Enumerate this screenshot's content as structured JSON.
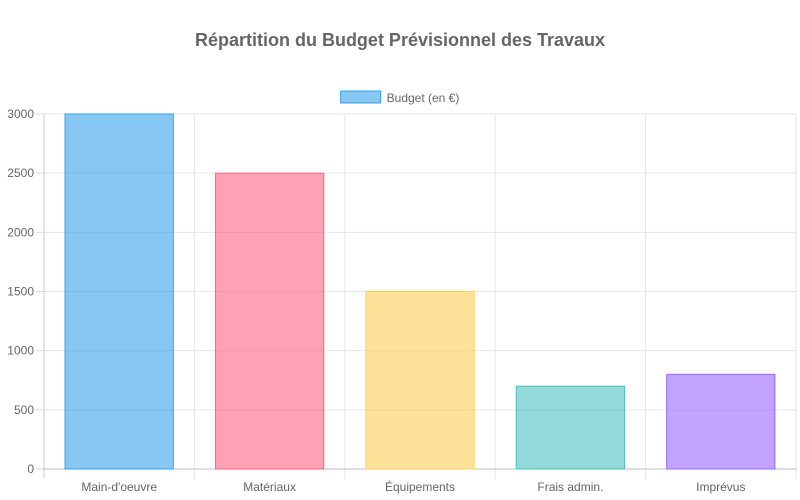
{
  "chart_data": {
    "type": "bar",
    "title": "Répartition du Budget Prévisionnel des Travaux",
    "categories": [
      "Main-d'oeuvre",
      "Matériaux",
      "Équipements",
      "Frais admin.",
      "Imprévus"
    ],
    "series": [
      {
        "name": "Budget (en €)",
        "values": [
          3000,
          2500,
          1500,
          700,
          800
        ]
      }
    ],
    "bar_colors": [
      "#36a2eb",
      "#ff6384",
      "#ffce56",
      "#4bc0c0",
      "#9966ff"
    ],
    "ylim": [
      0,
      3000
    ],
    "yticks": [
      0,
      500,
      1000,
      1500,
      2000,
      2500,
      3000
    ],
    "xlabel": "",
    "ylabel": "",
    "grid": true,
    "legend_position": "top"
  }
}
